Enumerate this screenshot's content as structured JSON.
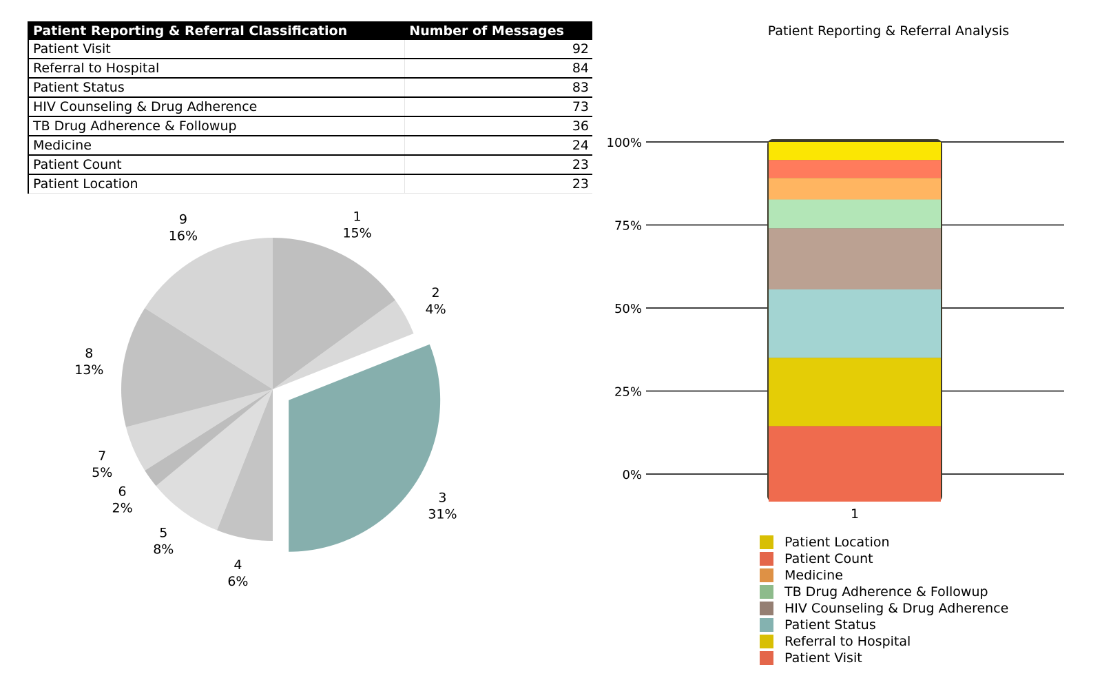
{
  "table": {
    "header_category": "Patient Reporting & Referral Classification",
    "header_value": "Number of Messages",
    "rows": [
      {
        "label": "Patient Visit",
        "value": "92"
      },
      {
        "label": "Referral to Hospital",
        "value": "84"
      },
      {
        "label": "Patient Status",
        "value": "83"
      },
      {
        "label": "HIV Counseling & Drug Adherence",
        "value": "73"
      },
      {
        "label": "TB Drug Adherence & Followup",
        "value": "36"
      },
      {
        "label": "Medicine",
        "value": "24"
      },
      {
        "label": "Patient Count",
        "value": "23"
      },
      {
        "label": "Patient Location",
        "value": "23"
      }
    ]
  },
  "chart_data": [
    {
      "type": "pie",
      "title": "",
      "categories": [
        "1",
        "2",
        "3",
        "4",
        "5",
        "6",
        "7",
        "8",
        "9"
      ],
      "values": [
        15,
        4,
        31,
        6,
        8,
        2,
        5,
        13,
        16
      ],
      "labels": [
        "15%",
        "4%",
        "31%",
        "6%",
        "8%",
        "2%",
        "5%",
        "13%",
        "16%"
      ],
      "exploded": "3",
      "colors": [
        "#bfbfbf",
        "#d9d9d9",
        "#86afad",
        "#c4c4c4",
        "#dedede",
        "#bdbdbd",
        "#dadada",
        "#c2c2c2",
        "#d6d6d6"
      ]
    },
    {
      "type": "bar",
      "stacked": true,
      "title": "Patient Reporting & Referral Analysis",
      "categories": [
        "1"
      ],
      "ylim": [
        0,
        100
      ],
      "yticks": [
        "0%",
        "25%",
        "50%",
        "75%",
        "100%"
      ],
      "series": [
        {
          "name": "Patient Visit",
          "values": [
            21
          ],
          "color": "#ef6b4e"
        },
        {
          "name": "Referral to Hospital",
          "values": [
            19
          ],
          "color": "#e4cd06"
        },
        {
          "name": "Patient Status",
          "values": [
            19
          ],
          "color": "#a3d4d2"
        },
        {
          "name": "HIV Counseling & Drug Adherence",
          "values": [
            17
          ],
          "color": "#bba192"
        },
        {
          "name": "TB Drug Adherence & Followup",
          "values": [
            8
          ],
          "color": "#b3e6b7"
        },
        {
          "name": "Medicine",
          "values": [
            6
          ],
          "color": "#ffb561"
        },
        {
          "name": "Patient Count",
          "values": [
            5
          ],
          "color": "#ff7b5c"
        },
        {
          "name": "Patient Location",
          "values": [
            5
          ],
          "color": "#fbe603"
        }
      ],
      "legend": [
        {
          "name": "Patient Location",
          "color": "#d8bf04"
        },
        {
          "name": "Patient Count",
          "color": "#e4664a"
        },
        {
          "name": "Medicine",
          "color": "#de9145"
        },
        {
          "name": "TB Drug Adherence & Followup",
          "color": "#8dbb8b"
        },
        {
          "name": "HIV Counseling & Drug Adherence",
          "color": "#957f73"
        },
        {
          "name": "Patient Status",
          "color": "#84b2b0"
        },
        {
          "name": "Referral to Hospital",
          "color": "#d8bf04"
        },
        {
          "name": "Patient Visit",
          "color": "#e4664a"
        }
      ]
    }
  ]
}
